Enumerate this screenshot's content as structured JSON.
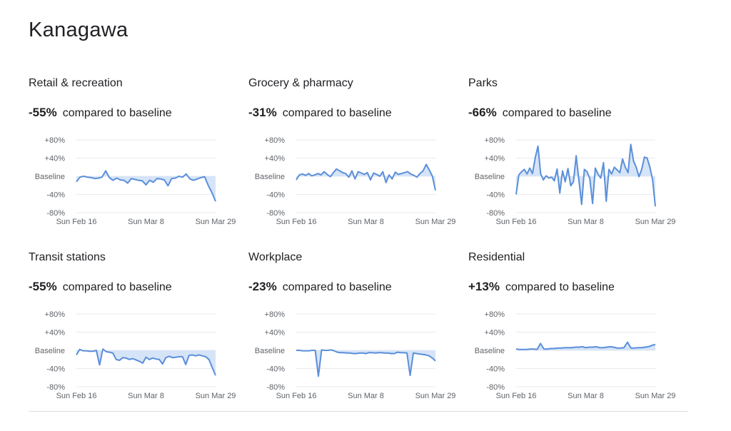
{
  "page": {
    "title": "Kanagawa"
  },
  "theme": {
    "line": "#5b8fd9",
    "fill": "#d6e4f8",
    "grid": "#e8eaed",
    "tick_text": "#5f6368"
  },
  "chart_data": [
    {
      "type": "line",
      "title": "Retail & recreation",
      "change": "-55%",
      "change_suffix": "compared to baseline",
      "ylim": [
        -80,
        80
      ],
      "y_ticks": [
        "+80%",
        "+40%",
        "Baseline",
        "-40%",
        "-80%"
      ],
      "x_ticks": [
        "Sun Feb 16",
        "Sun Mar 8",
        "Sun Mar 29"
      ],
      "values": [
        -12,
        -2,
        0,
        -2,
        -3,
        -5,
        -4,
        -2,
        12,
        -3,
        -9,
        -4,
        -8,
        -9,
        -15,
        -5,
        -7,
        -9,
        -10,
        -19,
        -9,
        -13,
        -5,
        -6,
        -8,
        -21,
        -5,
        -4,
        0,
        -2,
        5,
        -6,
        -9,
        -6,
        -3,
        -1,
        -20,
        -36,
        -55
      ]
    },
    {
      "type": "line",
      "title": "Grocery & pharmacy",
      "change": "-31%",
      "change_suffix": "compared to baseline",
      "ylim": [
        -80,
        80
      ],
      "y_ticks": [
        "+80%",
        "+40%",
        "Baseline",
        "-40%",
        "-80%"
      ],
      "x_ticks": [
        "Sun Feb 16",
        "Sun Mar 8",
        "Sun Mar 29"
      ],
      "values": [
        -8,
        3,
        5,
        2,
        6,
        1,
        3,
        6,
        3,
        10,
        4,
        -1,
        8,
        16,
        12,
        8,
        6,
        -2,
        12,
        -6,
        10,
        7,
        4,
        8,
        -8,
        7,
        4,
        0,
        10,
        -14,
        3,
        -6,
        9,
        4,
        6,
        8,
        10,
        5,
        2,
        -2,
        6,
        12,
        26,
        14,
        0,
        -31
      ]
    },
    {
      "type": "line",
      "title": "Parks",
      "change": "-66%",
      "change_suffix": "compared to baseline",
      "ylim": [
        -80,
        80
      ],
      "y_ticks": [
        "+80%",
        "+40%",
        "Baseline",
        "-40%",
        "-80%"
      ],
      "x_ticks": [
        "Sun Feb 16",
        "Sun Mar 8",
        "Sun Mar 29"
      ],
      "values": [
        -40,
        3,
        10,
        15,
        5,
        18,
        6,
        41,
        66,
        5,
        -8,
        1,
        -4,
        -2,
        -10,
        16,
        -37,
        12,
        -12,
        17,
        -21,
        -12,
        45,
        -8,
        -62,
        15,
        10,
        -5,
        -60,
        18,
        5,
        -4,
        30,
        -55,
        15,
        5,
        20,
        14,
        8,
        38,
        20,
        8,
        70,
        34,
        20,
        -1,
        15,
        42,
        40,
        20,
        -8,
        -66
      ]
    },
    {
      "type": "line",
      "title": "Transit stations",
      "change": "-55%",
      "change_suffix": "compared to baseline",
      "ylim": [
        -80,
        80
      ],
      "y_ticks": [
        "+80%",
        "+40%",
        "Baseline",
        "-40%",
        "-80%"
      ],
      "x_ticks": [
        "Sun Feb 16",
        "Sun Mar 8",
        "Sun Mar 29"
      ],
      "values": [
        -10,
        2,
        -1,
        -1,
        -2,
        -2,
        0,
        -32,
        3,
        -3,
        -4,
        -6,
        -20,
        -22,
        -16,
        -17,
        -20,
        -18,
        -21,
        -24,
        -28,
        -15,
        -20,
        -17,
        -19,
        -20,
        -30,
        -16,
        -13,
        -16,
        -15,
        -14,
        -14,
        -31,
        -11,
        -10,
        -12,
        -10,
        -12,
        -14,
        -20,
        -38,
        -55
      ]
    },
    {
      "type": "line",
      "title": "Workplace",
      "change": "-23%",
      "change_suffix": "compared to baseline",
      "ylim": [
        -80,
        80
      ],
      "y_ticks": [
        "+80%",
        "+40%",
        "Baseline",
        "-40%",
        "-80%"
      ],
      "x_ticks": [
        "Sun Feb 16",
        "Sun Mar 8",
        "Sun Mar 29"
      ],
      "values": [
        0,
        0,
        -1,
        -1,
        -1,
        0,
        0,
        -57,
        1,
        0,
        0,
        1,
        -1,
        -4,
        -5,
        -5,
        -6,
        -6,
        -7,
        -7,
        -6,
        -6,
        -7,
        -5,
        -5,
        -6,
        -5,
        -5,
        -6,
        -6,
        -7,
        -7,
        -4,
        -5,
        -5,
        -6,
        -55,
        -6,
        -7,
        -8,
        -9,
        -10,
        -12,
        -17,
        -23
      ]
    },
    {
      "type": "line",
      "title": "Residential",
      "change": "+13%",
      "change_suffix": "compared to baseline",
      "ylim": [
        -80,
        80
      ],
      "y_ticks": [
        "+80%",
        "+40%",
        "Baseline",
        "-40%",
        "-80%"
      ],
      "x_ticks": [
        "Sun Feb 16",
        "Sun Mar 8",
        "Sun Mar 29"
      ],
      "values": [
        3,
        2,
        2,
        2,
        3,
        3,
        2,
        15,
        3,
        3,
        4,
        4,
        5,
        5,
        6,
        6,
        6,
        7,
        7,
        8,
        6,
        7,
        7,
        8,
        6,
        6,
        7,
        8,
        7,
        5,
        5,
        6,
        18,
        5,
        5,
        6,
        6,
        7,
        8,
        11,
        13
      ]
    }
  ]
}
